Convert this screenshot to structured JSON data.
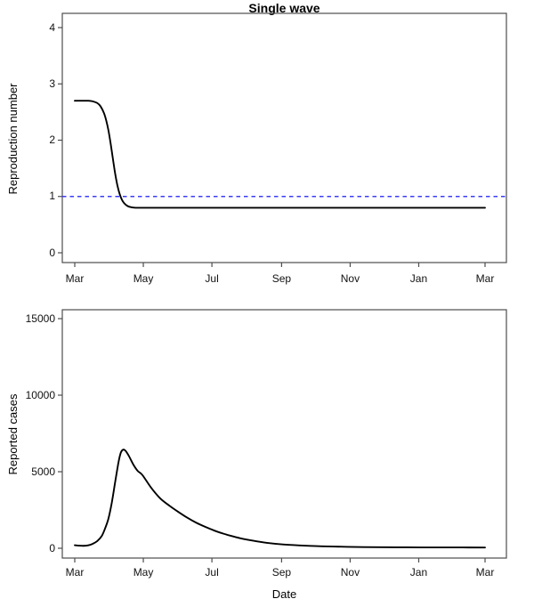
{
  "figure_title": "Single wave",
  "colors": {
    "reference_line_blue": "#3C3CF4",
    "series_black": "#000000",
    "axis_gray": "#4d4d4d"
  },
  "chart_data": [
    {
      "type": "line",
      "name": "reproduction-number-over-time",
      "title": "Single wave",
      "xlabel": "",
      "ylabel": "Reproduction number",
      "ylim": [
        0,
        4
      ],
      "y_ticks": [
        0,
        1,
        2,
        3,
        4
      ],
      "x_ticks": [
        {
          "label": "Mar",
          "day": 0
        },
        {
          "label": "May",
          "day": 61
        },
        {
          "label": "Jul",
          "day": 122
        },
        {
          "label": "Sep",
          "day": 184
        },
        {
          "label": "Nov",
          "day": 245
        },
        {
          "label": "Jan",
          "day": 306
        },
        {
          "label": "Mar",
          "day": 365
        }
      ],
      "grid": false,
      "legend": "none",
      "reference_line": {
        "y": 1,
        "color": "#3C3CF4",
        "style": "dashed"
      },
      "series": [
        {
          "name": "reproduction number",
          "color": "#000000",
          "points": [
            [
              0,
              2.7
            ],
            [
              6,
              2.7
            ],
            [
              12,
              2.7
            ],
            [
              16,
              2.69
            ],
            [
              20,
              2.66
            ],
            [
              23,
              2.6
            ],
            [
              26,
              2.48
            ],
            [
              28,
              2.35
            ],
            [
              30,
              2.17
            ],
            [
              32,
              1.93
            ],
            [
              34,
              1.66
            ],
            [
              36,
              1.4
            ],
            [
              38,
              1.19
            ],
            [
              40,
              1.04
            ],
            [
              42,
              0.94
            ],
            [
              44,
              0.88
            ],
            [
              47,
              0.83
            ],
            [
              50,
              0.81
            ],
            [
              54,
              0.8
            ],
            [
              62,
              0.8
            ],
            [
              90,
              0.8
            ],
            [
              130,
              0.8
            ],
            [
              180,
              0.8
            ],
            [
              230,
              0.8
            ],
            [
              280,
              0.8
            ],
            [
              330,
              0.8
            ],
            [
              365,
              0.8
            ]
          ]
        }
      ]
    },
    {
      "type": "line",
      "name": "reported-cases-over-time",
      "title": "",
      "xlabel": "Date",
      "ylabel": "Reported cases",
      "ylim": [
        0,
        15000
      ],
      "y_ticks": [
        0,
        5000,
        10000,
        15000
      ],
      "x_ticks": [
        {
          "label": "Mar",
          "day": 0
        },
        {
          "label": "May",
          "day": 61
        },
        {
          "label": "Jul",
          "day": 122
        },
        {
          "label": "Sep",
          "day": 184
        },
        {
          "label": "Nov",
          "day": 245
        },
        {
          "label": "Jan",
          "day": 306
        },
        {
          "label": "Mar",
          "day": 365
        }
      ],
      "grid": false,
      "legend": "none",
      "series": [
        {
          "name": "reported cases",
          "color": "#000000",
          "points": [
            [
              0,
              200
            ],
            [
              4,
              170
            ],
            [
              8,
              160
            ],
            [
              12,
              190
            ],
            [
              16,
              290
            ],
            [
              20,
              470
            ],
            [
              24,
              800
            ],
            [
              27,
              1300
            ],
            [
              30,
              1950
            ],
            [
              33,
              3000
            ],
            [
              36,
              4350
            ],
            [
              39,
              5650
            ],
            [
              41,
              6250
            ],
            [
              43,
              6440
            ],
            [
              45,
              6380
            ],
            [
              48,
              6050
            ],
            [
              52,
              5480
            ],
            [
              56,
              5050
            ],
            [
              60,
              4800
            ],
            [
              68,
              3950
            ],
            [
              76,
              3260
            ],
            [
              84,
              2790
            ],
            [
              92,
              2380
            ],
            [
              100,
              2000
            ],
            [
              108,
              1670
            ],
            [
              116,
              1400
            ],
            [
              124,
              1160
            ],
            [
              132,
              960
            ],
            [
              139,
              810
            ],
            [
              147,
              660
            ],
            [
              155,
              540
            ],
            [
              163,
              440
            ],
            [
              171,
              350
            ],
            [
              185,
              250
            ],
            [
              200,
              185
            ],
            [
              215,
              140
            ],
            [
              230,
              110
            ],
            [
              250,
              85
            ],
            [
              270,
              70
            ],
            [
              295,
              60
            ],
            [
              320,
              55
            ],
            [
              345,
              52
            ],
            [
              365,
              50
            ]
          ]
        }
      ]
    }
  ]
}
